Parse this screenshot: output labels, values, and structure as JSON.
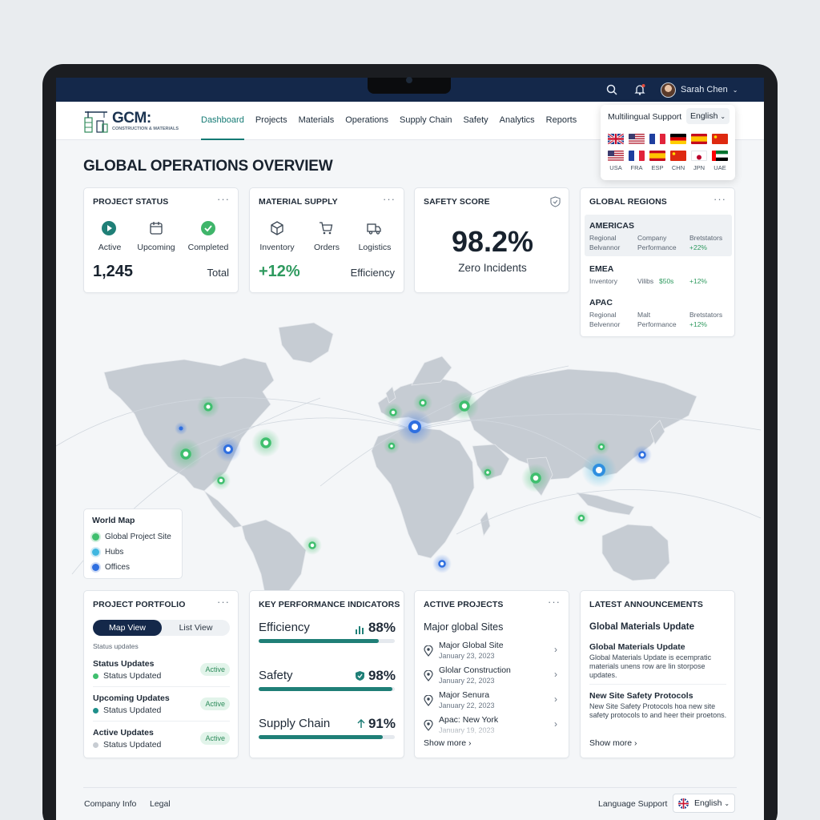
{
  "header": {
    "user_name": "Sarah Chen"
  },
  "logo": {
    "title": "GCM:",
    "subtitle": "CONSTRUCTION & MATERIALS"
  },
  "nav": [
    "Dashboard",
    "Projects",
    "Materials",
    "Operations",
    "Supply Chain",
    "Safety",
    "Analytics",
    "Reports"
  ],
  "language_popover": {
    "title": "Multilingual Support",
    "selected": "English",
    "codes": [
      "USA",
      "FRA",
      "ESP",
      "CHN",
      "JPN",
      "UAE"
    ]
  },
  "page_title": "GLOBAL OPERATIONS OVERVIEW",
  "project_status": {
    "title": "PROJECT STATUS",
    "labels": [
      "Active",
      "Upcoming",
      "Completed"
    ],
    "value": "1,245",
    "value_label": "Total"
  },
  "material_supply": {
    "title": "MATERIAL SUPPLY",
    "labels": [
      "Inventory",
      "Orders",
      "Logistics"
    ],
    "value": "+12%",
    "value_label": "Efficiency"
  },
  "safety_score": {
    "title": "SAFETY SCORE",
    "value": "98.2%",
    "subtitle": "Zero Incidents"
  },
  "global_regions": {
    "title": "GLOBAL REGIONS",
    "regions": [
      {
        "name": "AMERICAS",
        "c1a": "Regional",
        "c1b": "Belvannor",
        "c2a": "Company",
        "c2b": "Performance",
        "c3a": "Bretstators",
        "c3b": "+22%"
      },
      {
        "name": "EMEA",
        "c1a": "Inventory",
        "c2a": "Vilibs",
        "c2c": "$50s",
        "c3a": "+12%"
      },
      {
        "name": "APAC",
        "c1a": "Regional",
        "c1b": "Belvennor",
        "c2a": "Malt",
        "c2b": "Performance",
        "c3a": "Bretstators",
        "c3b": "+12%"
      }
    ]
  },
  "legend": {
    "title": "World Map",
    "items": [
      "Global Project Site",
      "Hubs",
      "Offices"
    ],
    "colors": [
      "#3fbf6e",
      "#3fb6e0",
      "#2f6fe0"
    ]
  },
  "portfolio": {
    "title": "PROJECT PORTFOLIO",
    "tab_map": "Map View",
    "tab_list": "List View",
    "caption": "Status updates",
    "rows": [
      {
        "title": "Status Updates",
        "sub": "Status Updated",
        "badge": "Active",
        "dot": "#3fbf6e"
      },
      {
        "title": "Upcoming Updates",
        "sub": "Status Updated",
        "badge": "Active",
        "dot": "#1f8f8a"
      },
      {
        "title": "Active Updates",
        "sub": "Status Updated",
        "badge": "Active",
        "dot": "#c8cdd3"
      }
    ]
  },
  "kpi": {
    "title": "KEY PERFORMANCE INDICATORS",
    "items": [
      {
        "name": "Efficiency",
        "value": "88%",
        "progress": 0.88
      },
      {
        "name": "Safety",
        "value": "98%",
        "progress": 0.98
      },
      {
        "name": "Supply Chain",
        "value": "91%",
        "progress": 0.91
      }
    ]
  },
  "active_projects": {
    "title": "ACTIVE PROJECTS",
    "subtitle": "Major global Sites",
    "items": [
      {
        "name": "Major Global Site",
        "date": "January 23, 2023"
      },
      {
        "name": "Glolar Construction",
        "date": "January 22, 2023"
      },
      {
        "name": "Major Senura",
        "date": "January 22, 2023"
      },
      {
        "name": "Apac: New York",
        "date": "January 19, 2023"
      }
    ],
    "show_more": "Show more"
  },
  "announcements": {
    "title": "LATEST ANNOUNCEMENTS",
    "subtitle": "Global Materials Update",
    "items": [
      {
        "title": "Global Materials Update",
        "body": "Global Materials Update is ecempratic materials unens row are lin storpose updates."
      },
      {
        "title": "New Site Safety Protocols",
        "body": "New Site Safety Protocols hoa new site safety protocols to and heer their proetons."
      }
    ],
    "show_more": "Show more"
  },
  "footer": {
    "company": "Company Info",
    "legal": "Legal",
    "language_label": "Language Support",
    "language": "English"
  }
}
